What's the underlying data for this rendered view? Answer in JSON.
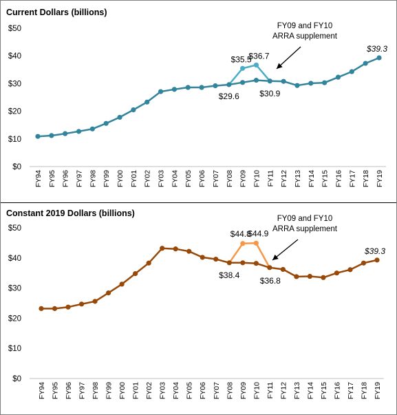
{
  "chart_data": [
    {
      "type": "line",
      "title": "Current Dollars (billions)",
      "categories": [
        "FY94",
        "FY95",
        "FY96",
        "FY97",
        "FY98",
        "FY99",
        "FY00",
        "FY01",
        "FY02",
        "FY03",
        "FY04",
        "FY05",
        "FY06",
        "FY07",
        "FY08",
        "FY09",
        "FY10",
        "FY11",
        "FY12",
        "FY13",
        "FY14",
        "FY15",
        "FY16",
        "FY17",
        "FY18",
        "FY19"
      ],
      "y_ticks": [
        "$0",
        "$10",
        "$20",
        "$30",
        "$40",
        "$50"
      ],
      "ylim": [
        0,
        50
      ],
      "grid": false,
      "colors": {
        "main": "#31849b",
        "supplement": "#4bacc6"
      },
      "series": [
        {
          "values": [
            10.9,
            11.2,
            11.9,
            12.7,
            13.6,
            15.6,
            17.8,
            20.5,
            23.3,
            27.1,
            27.9,
            28.6,
            28.6,
            29.2,
            29.6,
            30.4,
            31.2,
            30.9,
            30.8,
            29.3,
            30.1,
            30.3,
            32.3,
            34.3,
            37.3,
            39.3
          ]
        },
        {
          "values": [
            null,
            null,
            null,
            null,
            null,
            null,
            null,
            null,
            null,
            null,
            null,
            null,
            null,
            null,
            29.6,
            35.5,
            36.7,
            30.9,
            null,
            null,
            null,
            null,
            null,
            null,
            null,
            null
          ]
        }
      ],
      "data_labels": [
        {
          "category": "FY09",
          "text": "$35.5",
          "italic": false
        },
        {
          "category": "FY10",
          "text": "$36.7",
          "italic": false
        },
        {
          "category": "FY08",
          "text": "$29.6",
          "italic": false
        },
        {
          "category": "FY11",
          "text": "$30.9",
          "italic": false
        },
        {
          "category": "FY19",
          "text": "$39.3",
          "italic": true
        }
      ],
      "annotation": {
        "line1": "FY09 and FY10",
        "line2": "ARRA supplement"
      }
    },
    {
      "type": "line",
      "title": "Constant 2019 Dollars (billions)",
      "categories": [
        "FY94",
        "FY95",
        "FY96",
        "FY97",
        "FY98",
        "FY99",
        "FY00",
        "FY01",
        "FY02",
        "FY03",
        "FY04",
        "FY05",
        "FY06",
        "FY07",
        "FY08",
        "FY09",
        "FY10",
        "FY11",
        "FY12",
        "FY13",
        "FY14",
        "FY15",
        "FY16",
        "FY17",
        "FY18",
        "FY19"
      ],
      "y_ticks": [
        "$0",
        "$10",
        "$20",
        "$30",
        "$40",
        "$50"
      ],
      "ylim": [
        0,
        50
      ],
      "grid": false,
      "colors": {
        "main": "#984807",
        "supplement": "#f79646"
      },
      "series": [
        {
          "values": [
            23.2,
            23.2,
            23.7,
            24.7,
            25.6,
            28.4,
            31.3,
            34.8,
            38.3,
            43.2,
            43.0,
            42.2,
            40.2,
            39.6,
            38.4,
            38.4,
            38.2,
            36.8,
            36.2,
            33.8,
            33.9,
            33.5,
            35.0,
            36.1,
            38.3,
            39.3
          ]
        },
        {
          "values": [
            null,
            null,
            null,
            null,
            null,
            null,
            null,
            null,
            null,
            null,
            null,
            null,
            null,
            null,
            38.4,
            44.8,
            44.9,
            36.8,
            null,
            null,
            null,
            null,
            null,
            null,
            null,
            null
          ]
        }
      ],
      "data_labels": [
        {
          "category": "FY09",
          "text": "$44.8",
          "italic": false
        },
        {
          "category": "FY10",
          "text": "$44.9",
          "italic": false
        },
        {
          "category": "FY08",
          "text": "$38.4",
          "italic": false
        },
        {
          "category": "FY11",
          "text": "$36.8",
          "italic": false
        },
        {
          "category": "FY19",
          "text": "$39.3",
          "italic": true
        }
      ],
      "annotation": {
        "line1": "FY09 and FY10",
        "line2": "ARRA supplement"
      }
    }
  ]
}
